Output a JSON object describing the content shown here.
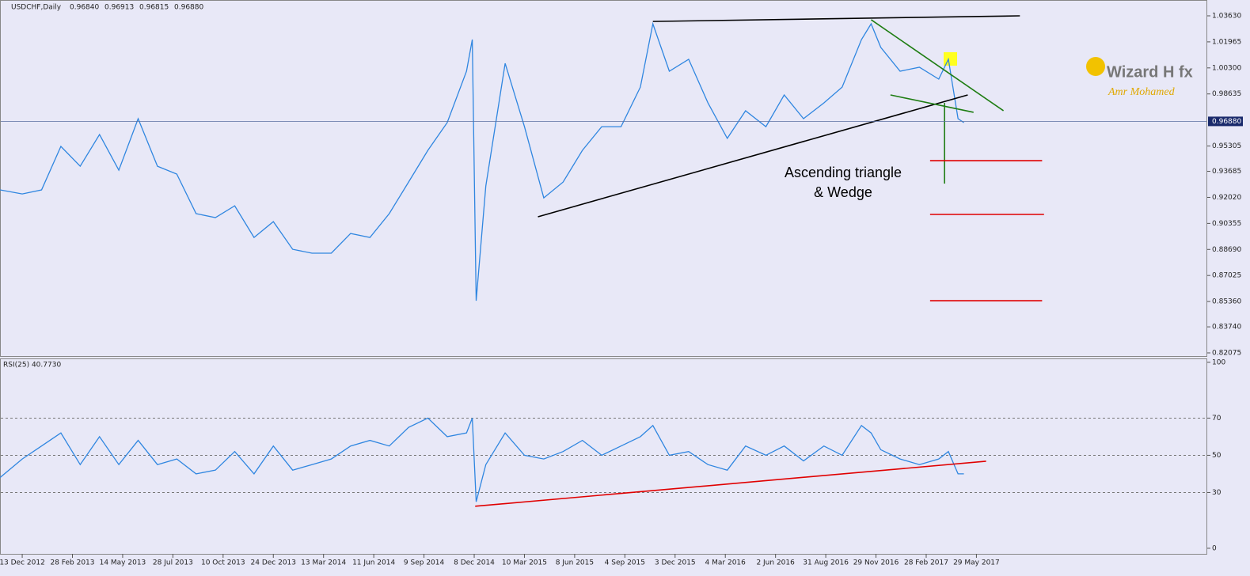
{
  "chart_data": [
    {
      "type": "line",
      "symbol": "USDCHF,Daily",
      "ohlc": [
        "0.96840",
        "0.96913",
        "0.96815",
        "0.96880"
      ],
      "x": [
        -23,
        0,
        20,
        40,
        60,
        80,
        100,
        120,
        140,
        160,
        180,
        200,
        220,
        240,
        260,
        280,
        300,
        320,
        340,
        360,
        380,
        400,
        420,
        440,
        460,
        466,
        470,
        480,
        500,
        520,
        540,
        560,
        580,
        600,
        620,
        640,
        653,
        670,
        690,
        710,
        730,
        749,
        770,
        789,
        809,
        830,
        849,
        869,
        879,
        889,
        909,
        929,
        949,
        959,
        969,
        975
      ],
      "series": [
        {
          "color": "#2f86e0",
          "values": [
            0.925,
            0.9224,
            0.925,
            0.9528,
            0.9401,
            0.9604,
            0.9376,
            0.9705,
            0.9401,
            0.9351,
            0.9098,
            0.9073,
            0.9148,
            0.8946,
            0.9047,
            0.887,
            0.8845,
            0.8845,
            0.8971,
            0.8946,
            0.9098,
            0.93,
            0.9503,
            0.968,
            1.0009,
            1.0211,
            0.8541,
            0.9275,
            1.0059,
            0.9654,
            0.9199,
            0.93,
            0.9503,
            0.9654,
            0.9654,
            0.9907,
            1.0312,
            1.0009,
            1.0085,
            0.9806,
            0.9579,
            0.9756,
            0.9654,
            0.9857,
            0.9705,
            0.9806,
            0.9907,
            1.0211,
            1.0312,
            1.0161,
            1.0009,
            1.0034,
            0.9958,
            1.0085,
            0.9705,
            0.968
          ]
        }
      ],
      "xlim": [
        -23,
        1227
      ],
      "xticks": [
        {
          "value": 0,
          "label": "13 Dec 2012"
        },
        {
          "value": 52,
          "label": "28 Feb 2013"
        },
        {
          "value": 104,
          "label": "14 May 2013"
        },
        {
          "value": 156,
          "label": "28 Jul 2013"
        },
        {
          "value": 208,
          "label": "10 Oct 2013"
        },
        {
          "value": 260,
          "label": "24 Dec 2013"
        },
        {
          "value": 312,
          "label": "13 Mar 2014"
        },
        {
          "value": 364,
          "label": "11 Jun 2014"
        },
        {
          "value": 416,
          "label": "9 Sep 2014"
        },
        {
          "value": 468,
          "label": "8 Dec 2014"
        },
        {
          "value": 520,
          "label": "10 Mar 2015"
        },
        {
          "value": 572,
          "label": "8 Jun 2015"
        },
        {
          "value": 624,
          "label": "4 Sep 2015"
        },
        {
          "value": 676,
          "label": "3 Dec 2015"
        },
        {
          "value": 728,
          "label": "4 Mar 2016"
        },
        {
          "value": 780,
          "label": "2 Jun 2016"
        },
        {
          "value": 832,
          "label": "31 Aug 2016"
        },
        {
          "value": 884,
          "label": "29 Nov 2016"
        },
        {
          "value": 936,
          "label": "28 Feb 2017"
        },
        {
          "value": 988,
          "label": "29 May 2017"
        }
      ],
      "ylim": [
        0.81873,
        1.04642
      ],
      "yticks": [
        {
          "value": 1.0363,
          "label": "1.03630"
        },
        {
          "value": 1.01965,
          "label": "1.01965"
        },
        {
          "value": 1.003,
          "label": "1.00300"
        },
        {
          "value": 0.98635,
          "label": "0.98635"
        },
        {
          "value": 0.95305,
          "label": "0.95305"
        },
        {
          "value": 0.93685,
          "label": "0.93685"
        },
        {
          "value": 0.9202,
          "label": "0.92020"
        },
        {
          "value": 0.90355,
          "label": "0.90355"
        },
        {
          "value": 0.8869,
          "label": "0.88690"
        },
        {
          "value": 0.87025,
          "label": "0.87025"
        },
        {
          "value": 0.8536,
          "label": "0.85360"
        },
        {
          "value": 0.8374,
          "label": "0.83740"
        },
        {
          "value": 0.82075,
          "label": "0.82075"
        }
      ],
      "last": {
        "value": 0.9688,
        "label": "0.96880"
      },
      "drawings": [
        {
          "x": [
            653,
            1033
          ],
          "y": [
            1.0327,
            1.0363
          ],
          "color": "#000000"
        },
        {
          "x": [
            534,
            979
          ],
          "y": [
            0.9078,
            0.9857
          ],
          "color": "#000000"
        },
        {
          "x": [
            879,
            1016
          ],
          "y": [
            1.0338,
            0.9756
          ],
          "color": "#1e7d12"
        },
        {
          "x": [
            899,
            985
          ],
          "y": [
            0.9857,
            0.9746
          ],
          "color": "#1e7d12"
        },
        {
          "x": [
            955,
            955
          ],
          "y": [
            0.9806,
            0.929
          ],
          "color": "#1e7d12"
        },
        {
          "x": [
            940,
            1056
          ],
          "y": [
            0.9437,
            0.9437
          ],
          "color": "#e00000"
        },
        {
          "x": [
            940,
            1058
          ],
          "y": [
            0.9093,
            0.9093
          ],
          "color": "#e00000"
        },
        {
          "x": [
            940,
            1056
          ],
          "y": [
            0.8541,
            0.8541
          ],
          "color": "#e00000"
        }
      ],
      "annotation": [
        "Ascending triangle",
        "& Wedge"
      ],
      "logo": {
        "title": "Wizard H fx",
        "subtitle": "Amr Mohamed"
      }
    },
    {
      "type": "line",
      "title": "RSI(25) 40.7730",
      "series": [
        {
          "color": "#2f86e0",
          "values": [
            38,
            48,
            55,
            62,
            45,
            60,
            45,
            58,
            45,
            48,
            40,
            42,
            52,
            40,
            55,
            42,
            45,
            48,
            55,
            58,
            55,
            65,
            70,
            60,
            62,
            70,
            25,
            45,
            62,
            50,
            48,
            52,
            58,
            50,
            55,
            60,
            66,
            50,
            52,
            45,
            42,
            55,
            50,
            55,
            47,
            55,
            50,
            66,
            62,
            53,
            48,
            45,
            48,
            52,
            40,
            40
          ]
        }
      ],
      "ylim": [
        -3,
        102.1
      ],
      "yticks": [
        0,
        30,
        50,
        70,
        100
      ],
      "levels": [
        30,
        50,
        70
      ],
      "drawings": [
        {
          "x": [
            469,
            998
          ],
          "y": [
            22.6,
            46.8
          ],
          "color": "#e00000"
        }
      ]
    }
  ]
}
